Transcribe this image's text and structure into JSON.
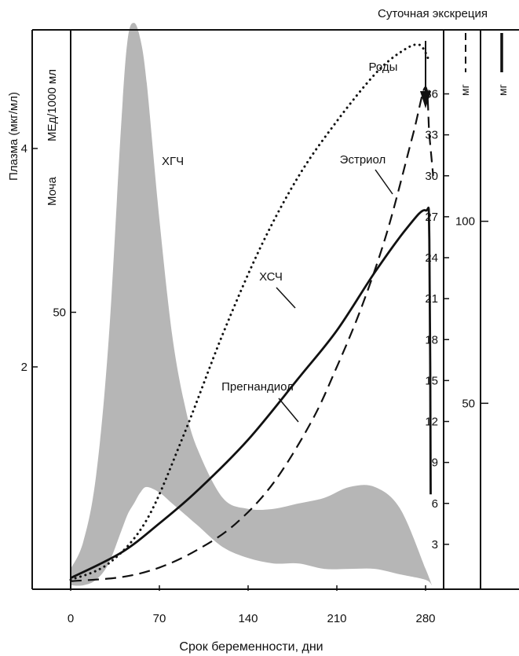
{
  "chart_data": {
    "type": "line",
    "header": "Суточная экскреция",
    "birth_label": "Роды",
    "x_axis": {
      "label": "Срок беременности, дни",
      "ticks": [
        0,
        70,
        140,
        210,
        280
      ],
      "range": [
        0,
        285
      ]
    },
    "left_axes": [
      {
        "label": "Плазма  (мкг/мл)",
        "ticks": [
          {
            "label": "4",
            "value": 4
          },
          {
            "label": "2",
            "value": 2
          }
        ],
        "range": [
          0,
          5
        ]
      },
      {
        "label_top": "МЕд/1000 мл",
        "label_bottom": "Моча",
        "ticks": [
          {
            "label": "50",
            "value": 50
          }
        ],
        "range": [
          0,
          100
        ]
      }
    ],
    "right_axes": [
      {
        "unit": "мг",
        "line_style": "dashed",
        "ticks": [
          "3",
          "6",
          "9",
          "12",
          "15",
          "18",
          "21",
          "24",
          "27",
          "30",
          "33",
          "36"
        ],
        "range": [
          0,
          40
        ]
      },
      {
        "unit": "мг",
        "line_style": "solid",
        "ticks": [
          "50",
          "100"
        ],
        "range": [
          0,
          150
        ]
      }
    ],
    "series": [
      {
        "name": "ХГЧ",
        "style": "band",
        "axis": "Моча",
        "x": [
          0,
          10,
          20,
          30,
          40,
          45,
          50,
          55,
          60,
          70,
          80,
          90,
          100,
          120,
          140,
          160,
          180,
          200,
          220,
          240,
          260,
          280,
          285
        ],
        "upper": [
          3,
          8,
          20,
          45,
          85,
          100,
          103,
          100,
          92,
          67,
          46,
          33,
          25,
          16,
          14,
          14,
          15,
          16,
          18,
          18,
          14,
          3,
          0
        ],
        "lower": [
          0,
          0,
          1,
          4,
          10,
          13,
          15,
          17,
          18,
          17,
          15,
          13,
          11,
          7,
          5,
          4,
          4,
          3,
          3,
          3,
          2,
          1,
          0
        ]
      },
      {
        "name": "ХСЧ",
        "style": "dotted",
        "axis": "Плазма",
        "x": [
          0,
          30,
          60,
          90,
          120,
          150,
          180,
          210,
          240,
          260,
          275,
          283
        ],
        "y": [
          0.05,
          0.2,
          0.6,
          1.4,
          2.3,
          3.1,
          3.75,
          4.25,
          4.68,
          4.88,
          4.95,
          4.8
        ]
      },
      {
        "name": "Эстриол",
        "style": "dashed",
        "axis": "мг (dashed)",
        "x": [
          0,
          40,
          70,
          100,
          130,
          160,
          190,
          210,
          230,
          250,
          270,
          280,
          283,
          286
        ],
        "y": [
          0.3,
          0.6,
          1.3,
          2.6,
          4.5,
          7.5,
          12,
          16,
          20.5,
          26,
          33,
          36.5,
          33,
          30
        ]
      },
      {
        "name": "Прегнандиол",
        "style": "solid",
        "axis": "мг (solid)",
        "x": [
          0,
          40,
          70,
          100,
          140,
          180,
          210,
          240,
          265,
          280,
          283,
          284
        ],
        "y": [
          2,
          9,
          17,
          26,
          40,
          57,
          70,
          86,
          98,
          103,
          95,
          25
        ]
      }
    ]
  }
}
